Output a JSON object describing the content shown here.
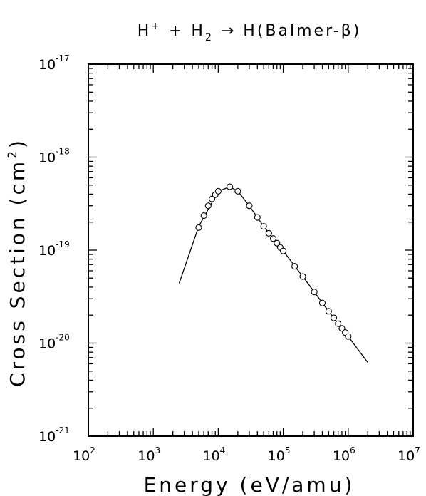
{
  "chart_data": {
    "type": "scatter",
    "title_parts": [
      "H",
      "+",
      " + H",
      "2",
      " → H(Balmer-β)"
    ],
    "xlabel": "Energy (eV/amu)",
    "ylabel_parts": [
      "Cross Section (cm",
      "2",
      ")"
    ],
    "x_scale": "log",
    "y_scale": "log",
    "xlim": [
      100,
      10000000
    ],
    "ylim": [
      1e-21,
      1e-17
    ],
    "x_tick_exponents": [
      2,
      3,
      4,
      5,
      6,
      7
    ],
    "y_tick_exponents": [
      -21,
      -20,
      -19,
      -18,
      -17
    ],
    "tick_base": "10",
    "grid": false,
    "legend": "none",
    "series": [
      {
        "style": "line",
        "x": [
          2500,
          5000,
          10000,
          15000,
          20000,
          30000,
          50000,
          100000,
          200000,
          500000,
          1000000,
          2000000
        ],
        "y": [
          4.4e-20,
          1.8e-19,
          4.3e-19,
          4.8e-19,
          4.3e-19,
          3e-19,
          1.8e-19,
          9.8e-20,
          5.2e-20,
          2.2e-20,
          1.18e-20,
          6.2e-21
        ]
      },
      {
        "style": "markers",
        "marker": "open-circle",
        "x": [
          5000,
          6000,
          7000,
          8000,
          9000,
          10000,
          15000,
          20000,
          30000,
          40000,
          50000,
          60000,
          70000,
          80000,
          90000,
          100000,
          150000,
          200000,
          300000,
          400000,
          500000,
          600000,
          700000,
          800000,
          900000,
          1000000
        ],
        "y": [
          1.75e-19,
          2.35e-19,
          3e-19,
          3.55e-19,
          3.95e-19,
          4.3e-19,
          4.8e-19,
          4.3e-19,
          3e-19,
          2.25e-19,
          1.8e-19,
          1.52e-19,
          1.33e-19,
          1.19e-19,
          1.07e-19,
          9.8e-20,
          6.7e-20,
          5.2e-20,
          3.55e-20,
          2.7e-20,
          2.2e-20,
          1.87e-20,
          1.62e-20,
          1.44e-20,
          1.3e-20,
          1.18e-20
        ]
      }
    ]
  }
}
